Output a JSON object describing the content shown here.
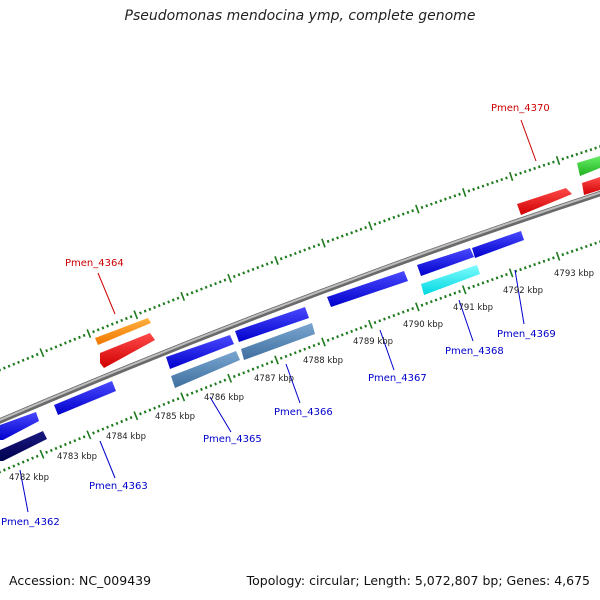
{
  "title": "Pseudomonas mendocina ymp, complete genome",
  "footer": {
    "accession": "Accession: NC_009439",
    "topology": "Topology: circular; Length: 5,072,807 bp; Genes: 4,675"
  },
  "colors": {
    "backbone": "#9a9a9a",
    "tick": "#1d7a1d",
    "label_forward": "#cc0000",
    "label_reverse": "#0000cc"
  },
  "kbp_labels": [
    "4782 kbp",
    "4783 kbp",
    "4784 kbp",
    "4785 kbp",
    "4786 kbp",
    "4787 kbp",
    "4788 kbp",
    "4789 kbp",
    "4790 kbp",
    "4791 kbp",
    "4792 kbp",
    "4793 kbp"
  ],
  "gene_labels": [
    "Pmen_4362",
    "Pmen_4363",
    "Pmen_4364",
    "Pmen_4365",
    "Pmen_4366",
    "Pmen_4367",
    "Pmen_4368",
    "Pmen_4369",
    "Pmen_4370"
  ]
}
